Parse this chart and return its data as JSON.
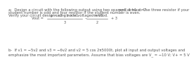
{
  "line1": "a-  Design a circuit with the following output using two opamps at least. Use three resistor if your",
  "line2": "student number is odd and four resistor if the student number is even.",
  "line3": "Verify your circuit design using node voltage method.",
  "abc_label": "a=8  b=1  c=7",
  "vout_label": "Vout =",
  "frac1_num": "a × v2 – b × v1",
  "frac1_den": "3",
  "frac2_num": "c × v3",
  "frac2_den": "2",
  "plus3": "+ 3",
  "line_b1": "b-  If v1 = −5v2 and v3 = −6v2 and v2 = 5 cos 2π5000t, plot all input and output voltages and",
  "line_b2": "emphasize the most important parameters. Assume that bias voltages are V_ = −10 V; V+ = 5 V",
  "bg_color": "#ffffff",
  "text_color": "#555555",
  "fs": 3.8,
  "fs_formula": 3.6
}
